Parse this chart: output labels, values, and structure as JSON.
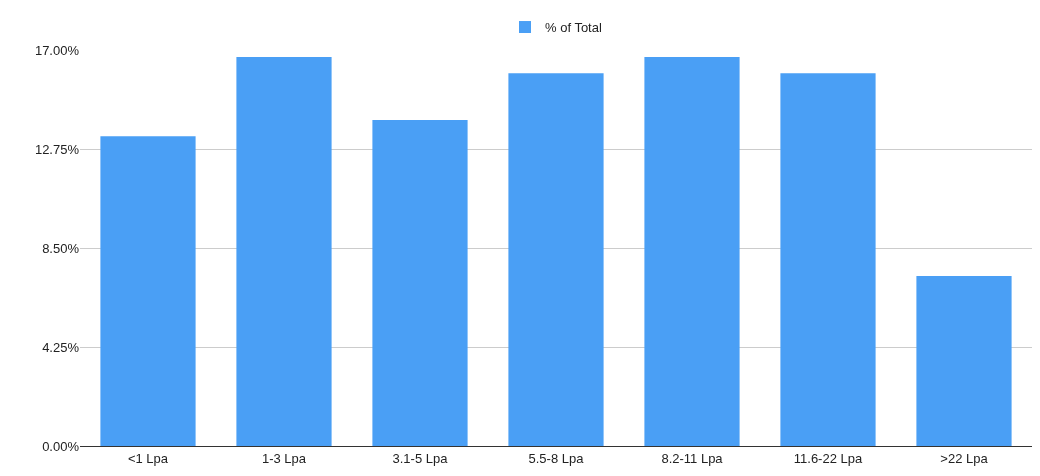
{
  "chart_data": {
    "type": "bar",
    "categories": [
      "<1 Lpa",
      "1-3 Lpa",
      "3.1-5 Lpa",
      "5.5-8 Lpa",
      "8.2-11 Lpa",
      "11.6-22 Lpa",
      ">22 Lpa"
    ],
    "series": [
      {
        "name": "% of Total",
        "color": "#4a9ff5",
        "values": [
          13.3,
          16.7,
          14.0,
          16.0,
          16.7,
          16.0,
          7.3
        ]
      }
    ],
    "ylim": [
      0,
      17
    ],
    "yticks": [
      {
        "value": 0,
        "label": "0.00%"
      },
      {
        "value": 4.25,
        "label": "4.25%"
      },
      {
        "value": 8.5,
        "label": "8.50%"
      },
      {
        "value": 12.75,
        "label": "12.75%"
      },
      {
        "value": 17,
        "label": "17.00%"
      }
    ],
    "grid": "y",
    "legend": "top"
  }
}
